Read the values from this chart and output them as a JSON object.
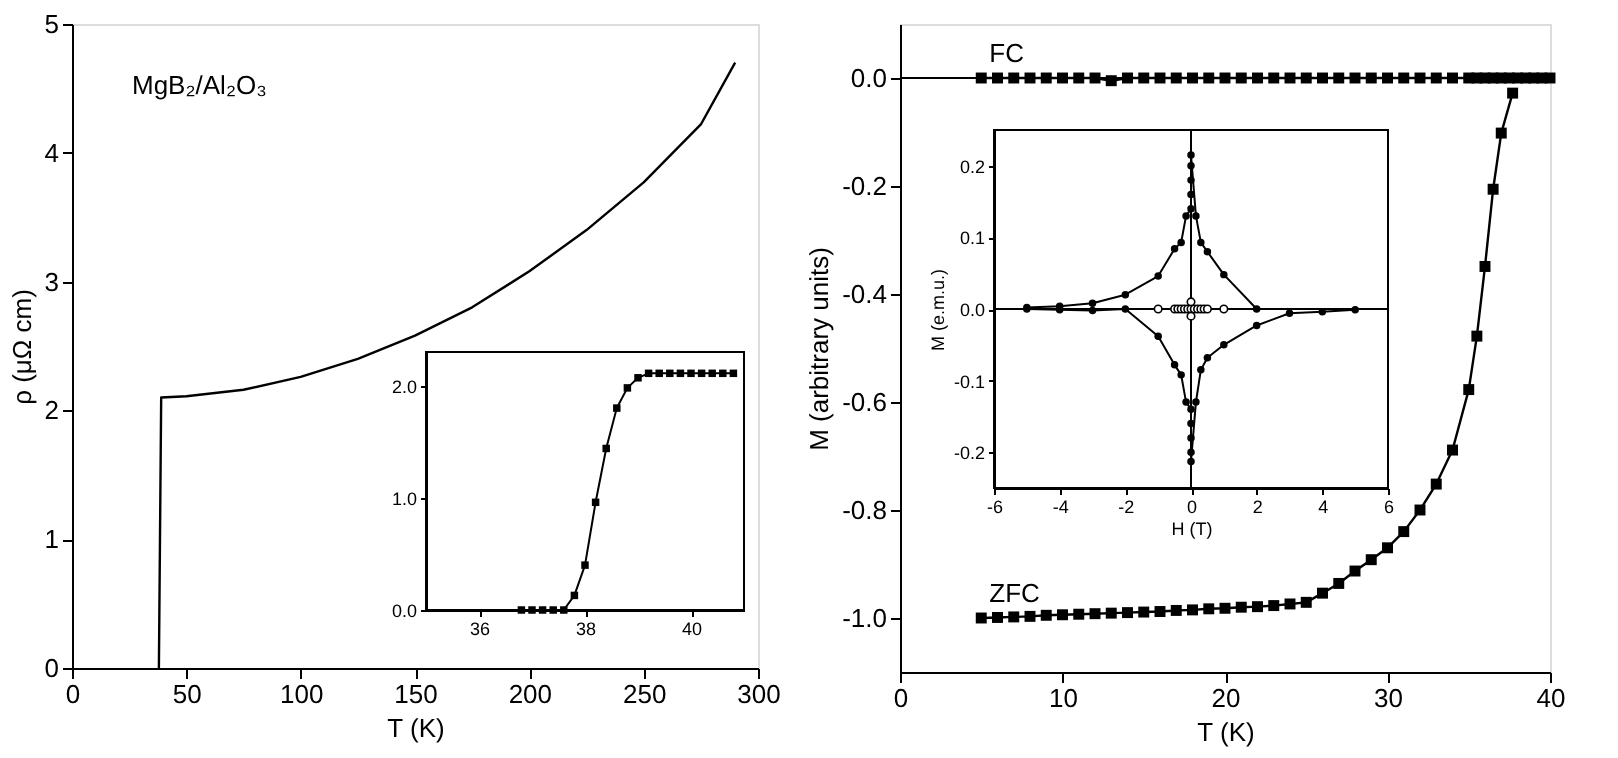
{
  "chart_data": [
    {
      "type": "line",
      "xlabel": "T (K)",
      "ylabel": "ρ (μΩ cm)",
      "annotations": [
        "MgB₂/Al₂O₃"
      ],
      "xlim": [
        0,
        300
      ],
      "ylim": [
        0,
        5
      ],
      "xticks": [
        0,
        50,
        100,
        150,
        200,
        250,
        300
      ],
      "yticks": [
        0,
        1,
        2,
        3,
        4,
        5
      ],
      "grid": false,
      "marker": "none",
      "line_style": "solid",
      "series": [
        {
          "color": "#000000",
          "x": [
            38,
            39,
            50,
            75,
            100,
            125,
            150,
            175,
            200,
            225,
            250,
            275,
            290
          ],
          "values": [
            0,
            2.1,
            2.11,
            2.16,
            2.26,
            2.4,
            2.58,
            2.8,
            3.08,
            3.4,
            3.77,
            4.22,
            4.7
          ]
        }
      ]
    },
    {
      "type": "line",
      "xlim": [
        35,
        41
      ],
      "ylim": [
        0,
        2.3
      ],
      "xticks": [
        36,
        38,
        40
      ],
      "yticks": [
        {
          "value": 0,
          "label": "0.0"
        },
        {
          "value": 1,
          "label": "1.0"
        },
        {
          "value": 2,
          "label": "2.0"
        }
      ],
      "grid": false,
      "marker": "square",
      "line_style": "solid",
      "series": [
        {
          "color": "#000000",
          "x": [
            36.8,
            37.0,
            37.2,
            37.4,
            37.6,
            37.8,
            38.0,
            38.2,
            38.4,
            38.6,
            38.8,
            39.0,
            39.2,
            39.4,
            39.6,
            39.8,
            40.0,
            40.2,
            40.4,
            40.6,
            40.8
          ],
          "values": [
            0,
            0,
            0,
            0,
            0,
            0.13,
            0.4,
            0.96,
            1.44,
            1.8,
            1.98,
            2.07,
            2.11,
            2.11,
            2.11,
            2.11,
            2.11,
            2.11,
            2.11,
            2.11,
            2.11
          ]
        }
      ]
    },
    {
      "type": "line",
      "xlabel": "T (K)",
      "ylabel": "M (arbitrary units)",
      "xlim": [
        0,
        40
      ],
      "ylim": [
        -1.1,
        0.1
      ],
      "xticks": [
        0,
        10,
        20,
        30,
        40
      ],
      "yticks": [
        {
          "value": 0,
          "label": "0.0"
        },
        -0.2,
        -0.4,
        -0.6,
        -0.8,
        {
          "value": -1,
          "label": "-1.0"
        }
      ],
      "grid": false,
      "marker": "square",
      "line_style": "solid",
      "ref_lines": [
        {
          "axis": "y",
          "value": 0,
          "color": "#000000"
        }
      ],
      "series": [
        {
          "name": "FC",
          "color": "#000000",
          "x": [
            5,
            6,
            7,
            8,
            9,
            10,
            11,
            12,
            13,
            14,
            15,
            16,
            17,
            18,
            19,
            20,
            21,
            22,
            23,
            24,
            25,
            26,
            27,
            28,
            29,
            30,
            31,
            32,
            33,
            34,
            35,
            35.5,
            36,
            36.5,
            37,
            37.5,
            38,
            38.5,
            39,
            39.5,
            40
          ],
          "values": [
            0,
            0,
            0,
            0,
            0,
            0,
            0,
            0,
            -0.005,
            0,
            0,
            0,
            0,
            0,
            0,
            0,
            0,
            0,
            0,
            0,
            0,
            0,
            0,
            0,
            0,
            0,
            0,
            0,
            0,
            0,
            0,
            0,
            0,
            0,
            0,
            0,
            0,
            0,
            0,
            0,
            0
          ]
        },
        {
          "name": "ZFC",
          "color": "#000000",
          "x": [
            5,
            6,
            7,
            8,
            9,
            10,
            11,
            12,
            13,
            14,
            15,
            16,
            17,
            18,
            19,
            20,
            21,
            22,
            23,
            24,
            25,
            26,
            27,
            28,
            29,
            30,
            31,
            32,
            33,
            34,
            35,
            35.5,
            36,
            36.5,
            37,
            37.7
          ],
          "values": [
            -1.0,
            -0.999,
            -0.998,
            -0.997,
            -0.995,
            -0.994,
            -0.993,
            -0.992,
            -0.991,
            -0.99,
            -0.989,
            -0.988,
            -0.986,
            -0.985,
            -0.983,
            -0.982,
            -0.98,
            -0.979,
            -0.977,
            -0.974,
            -0.971,
            -0.954,
            -0.936,
            -0.913,
            -0.892,
            -0.87,
            -0.84,
            -0.8,
            -0.752,
            -0.689,
            -0.577,
            -0.478,
            -0.349,
            -0.206,
            -0.102,
            -0.028
          ]
        }
      ]
    },
    {
      "type": "line",
      "xlabel": "H (T)",
      "ylabel": "M (e.m.u.)",
      "xlim": [
        -6,
        6
      ],
      "ylim": [
        -0.25,
        0.25
      ],
      "xticks": [
        -6,
        -4,
        -2,
        0,
        2,
        4,
        6
      ],
      "yticks": [
        -0.2,
        -0.1,
        {
          "value": 0,
          "label": "0.0"
        },
        0.1,
        0.2
      ],
      "grid": false,
      "marker": "circle",
      "line_style": "solid",
      "ref_lines": [
        {
          "axis": "x",
          "value": 0,
          "color": "#000000"
        },
        {
          "axis": "y",
          "value": 0,
          "color": "#000000"
        }
      ],
      "series": [
        {
          "color": "#000000",
          "x": [
            -5,
            -4,
            -3,
            -2,
            -1,
            -0.5,
            -0.3,
            -0.15,
            0,
            0,
            0,
            0,
            0,
            0.15,
            0.3,
            0.5,
            1,
            2
          ],
          "values": [
            0.002,
            0.004,
            0.008,
            0.02,
            0.046,
            0.084,
            0.093,
            0.13,
            0.14,
            0.16,
            0.18,
            0.2,
            0.215,
            0.13,
            0.093,
            0.08,
            0.048,
            0.0
          ]
        },
        {
          "color": "#000000",
          "x": [
            -5,
            -4,
            -3,
            -2,
            -1,
            -0.5,
            -0.3,
            -0.15,
            0,
            0,
            0,
            0,
            0,
            0.15,
            0.3,
            0.5,
            1,
            2,
            3,
            4,
            5
          ],
          "values": [
            0.0,
            -0.001,
            -0.002,
            0.0,
            -0.038,
            -0.078,
            -0.092,
            -0.13,
            -0.14,
            -0.16,
            -0.18,
            -0.2,
            -0.213,
            -0.13,
            -0.085,
            -0.068,
            -0.05,
            -0.023,
            -0.006,
            -0.004,
            -0.001
          ]
        },
        {
          "type": "scatter",
          "color": "#000000",
          "x": [
            -1,
            -0.5,
            -0.4,
            -0.3,
            -0.2,
            -0.1,
            0,
            0.1,
            0.2,
            0.3,
            0.4,
            0.5,
            1,
            0,
            0
          ],
          "values": [
            0,
            0,
            0,
            0,
            0,
            0,
            0,
            0,
            0,
            0,
            0,
            0,
            0,
            0.01,
            -0.01
          ]
        }
      ]
    }
  ]
}
